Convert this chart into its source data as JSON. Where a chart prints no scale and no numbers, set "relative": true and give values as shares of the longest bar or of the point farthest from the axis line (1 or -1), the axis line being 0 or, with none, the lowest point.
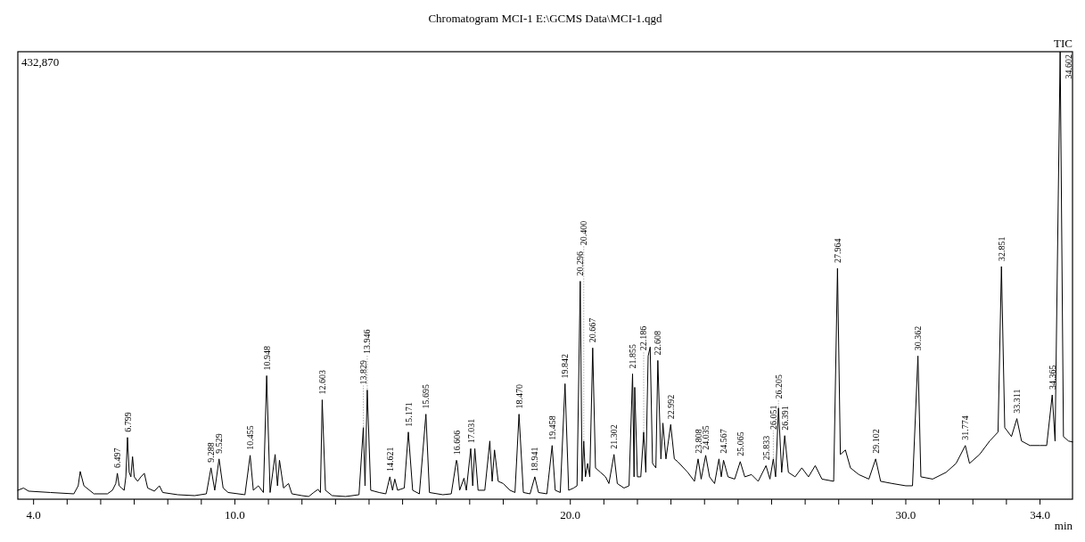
{
  "chart_data": {
    "type": "line",
    "title": "Chromatogram MCI-1 E:\\GCMS Data\\MCI-1.qgd",
    "xlabel": "min",
    "relative": true,
    "grid": false,
    "legend": false,
    "marker": "none",
    "line_style": "solid",
    "xlim": [
      3.53,
      34.97
    ],
    "xticks": [
      {
        "value": 4,
        "label": "4.0"
      },
      {
        "value": 5,
        "label": null
      },
      {
        "value": 6,
        "label": null
      },
      {
        "value": 7,
        "label": null
      },
      {
        "value": 8,
        "label": null
      },
      {
        "value": 9,
        "label": null
      },
      {
        "value": 10,
        "label": "10.0"
      },
      {
        "value": 11,
        "label": null
      },
      {
        "value": 12,
        "label": null
      },
      {
        "value": 13,
        "label": null
      },
      {
        "value": 14,
        "label": null
      },
      {
        "value": 15,
        "label": null
      },
      {
        "value": 16,
        "label": null
      },
      {
        "value": 17,
        "label": null
      },
      {
        "value": 18,
        "label": null
      },
      {
        "value": 19,
        "label": null
      },
      {
        "value": 20,
        "label": "20.0"
      },
      {
        "value": 21,
        "label": null
      },
      {
        "value": 22,
        "label": null
      },
      {
        "value": 23,
        "label": null
      },
      {
        "value": 24,
        "label": null
      },
      {
        "value": 25,
        "label": null
      },
      {
        "value": 26,
        "label": null
      },
      {
        "value": 27,
        "label": null
      },
      {
        "value": 28,
        "label": null
      },
      {
        "value": 29,
        "label": null
      },
      {
        "value": 30,
        "label": "30.0"
      },
      {
        "value": 31,
        "label": null
      },
      {
        "value": 32,
        "label": null
      },
      {
        "value": 33,
        "label": null
      },
      {
        "value": 34,
        "label": "34.0"
      }
    ],
    "series": [
      {
        "name": "TIC",
        "color": "#000000",
        "x": [
          3.53,
          3.7,
          3.85,
          4.5,
          5.2,
          5.33,
          5.39,
          5.5,
          5.8,
          6.2,
          6.35,
          6.45,
          6.497,
          6.55,
          6.62,
          6.7,
          6.75,
          6.799,
          6.85,
          6.9,
          6.95,
          7.0,
          7.1,
          7.2,
          7.3,
          7.4,
          7.6,
          7.75,
          7.85,
          8.3,
          8.8,
          9.15,
          9.288,
          9.4,
          9.529,
          9.65,
          9.8,
          10.3,
          10.455,
          10.55,
          10.7,
          10.85,
          10.948,
          11.05,
          11.2,
          11.27,
          11.33,
          11.45,
          11.6,
          11.7,
          12.0,
          12.2,
          12.35,
          12.48,
          12.55,
          12.603,
          12.7,
          12.9,
          13.3,
          13.7,
          13.829,
          13.88,
          13.946,
          14.05,
          14.3,
          14.5,
          14.621,
          14.7,
          14.767,
          14.85,
          15.05,
          15.171,
          15.3,
          15.5,
          15.695,
          15.8,
          16.2,
          16.45,
          16.606,
          16.632,
          16.7,
          16.83,
          16.9,
          17.031,
          17.09,
          17.153,
          17.25,
          17.45,
          17.6,
          17.67,
          17.74,
          17.85,
          18.0,
          18.2,
          18.35,
          18.47,
          18.6,
          18.8,
          18.941,
          19.05,
          19.3,
          19.458,
          19.55,
          19.7,
          19.842,
          19.95,
          20.1,
          20.2,
          20.296,
          20.35,
          20.4,
          20.45,
          20.517,
          20.58,
          20.667,
          20.75,
          20.9,
          21.05,
          21.15,
          21.302,
          21.4,
          21.6,
          21.75,
          21.855,
          21.9,
          21.92,
          22.0,
          22.1,
          22.186,
          22.25,
          22.32,
          22.38,
          22.45,
          22.55,
          22.608,
          22.7,
          22.76,
          22.85,
          22.992,
          23.1,
          23.2,
          23.5,
          23.7,
          23.808,
          23.9,
          24.035,
          24.15,
          24.3,
          24.43,
          24.5,
          24.567,
          24.7,
          24.9,
          25.065,
          25.2,
          25.4,
          25.6,
          25.833,
          25.95,
          26.051,
          26.12,
          26.205,
          26.3,
          26.391,
          26.5,
          26.7,
          26.9,
          27.1,
          27.3,
          27.5,
          27.85,
          27.964,
          28.05,
          28.2,
          28.35,
          28.6,
          28.9,
          29.102,
          29.25,
          29.6,
          30.0,
          30.2,
          30.362,
          30.45,
          30.8,
          31.2,
          31.5,
          31.774,
          31.9,
          32.2,
          32.5,
          32.75,
          32.851,
          32.95,
          33.15,
          33.311,
          33.45,
          33.7,
          34.0,
          34.2,
          34.365,
          34.45,
          34.602,
          34.7,
          34.85,
          34.97
        ],
        "values": [
          0.02,
          0.025,
          0.018,
          0.015,
          0.012,
          0.03,
          0.062,
          0.03,
          0.012,
          0.012,
          0.02,
          0.035,
          0.058,
          0.03,
          0.025,
          0.02,
          0.05,
          0.138,
          0.06,
          0.05,
          0.095,
          0.05,
          0.04,
          0.05,
          0.058,
          0.025,
          0.018,
          0.03,
          0.015,
          0.01,
          0.008,
          0.012,
          0.07,
          0.02,
          0.09,
          0.025,
          0.015,
          0.01,
          0.098,
          0.02,
          0.03,
          0.015,
          0.276,
          0.015,
          0.1,
          0.03,
          0.087,
          0.025,
          0.035,
          0.012,
          0.008,
          0.006,
          0.015,
          0.022,
          0.015,
          0.222,
          0.02,
          0.008,
          0.006,
          0.01,
          0.16,
          0.03,
          0.244,
          0.02,
          0.015,
          0.012,
          0.05,
          0.02,
          0.045,
          0.02,
          0.025,
          0.15,
          0.02,
          0.012,
          0.19,
          0.015,
          0.01,
          0.012,
          0.087,
          0.08,
          0.02,
          0.047,
          0.02,
          0.113,
          0.03,
          0.113,
          0.02,
          0.02,
          0.13,
          0.04,
          0.11,
          0.04,
          0.035,
          0.02,
          0.015,
          0.19,
          0.015,
          0.012,
          0.05,
          0.015,
          0.012,
          0.12,
          0.02,
          0.015,
          0.258,
          0.02,
          0.025,
          0.03,
          0.487,
          0.04,
          0.13,
          0.05,
          0.08,
          0.05,
          0.338,
          0.07,
          0.06,
          0.05,
          0.035,
          0.1,
          0.035,
          0.025,
          0.03,
          0.28,
          0.05,
          0.25,
          0.05,
          0.05,
          0.15,
          0.06,
          0.32,
          0.34,
          0.08,
          0.07,
          0.31,
          0.09,
          0.17,
          0.09,
          0.167,
          0.09,
          0.084,
          0.06,
          0.04,
          0.09,
          0.045,
          0.098,
          0.05,
          0.035,
          0.09,
          0.05,
          0.087,
          0.05,
          0.045,
          0.084,
          0.05,
          0.055,
          0.04,
          0.075,
          0.045,
          0.09,
          0.05,
          0.204,
          0.06,
          0.142,
          0.06,
          0.05,
          0.07,
          0.05,
          0.075,
          0.045,
          0.04,
          0.516,
          0.1,
          0.11,
          0.07,
          0.055,
          0.045,
          0.09,
          0.04,
          0.035,
          0.03,
          0.03,
          0.32,
          0.05,
          0.045,
          0.06,
          0.08,
          0.12,
          0.08,
          0.1,
          0.13,
          0.15,
          0.52,
          0.16,
          0.14,
          0.18,
          0.13,
          0.12,
          0.12,
          0.12,
          0.233,
          0.13,
          1,
          0.14,
          0.13,
          0.128
        ]
      }
    ],
    "annotations": [
      "432,870",
      {
        "text": "6.497",
        "x": 6.497,
        "y": 0.058
      },
      {
        "text": "6.799",
        "x": 6.799,
        "y": 0.138
      },
      {
        "text": "9.288",
        "x": 9.288,
        "y": 0.07
      },
      {
        "text": "9.529",
        "x": 9.529,
        "y": 0.09
      },
      {
        "text": "10.455",
        "x": 10.455,
        "y": 0.098
      },
      {
        "text": "10.948",
        "x": 10.948,
        "y": 0.276
      },
      {
        "text": "12.603",
        "x": 12.603,
        "y": 0.222
      },
      {
        "text": "13.829",
        "x": 13.829,
        "y": 0.16
      },
      {
        "text": "13.946",
        "x": 13.946,
        "y": 0.244
      },
      {
        "text": "14.621",
        "x": 14.621,
        "y": 0.05
      },
      {
        "text": "15.171",
        "x": 15.171,
        "y": 0.15
      },
      {
        "text": "15.695",
        "x": 15.695,
        "y": 0.19
      },
      {
        "text": "16.606",
        "x": 16.606,
        "y": 0.087
      },
      {
        "text": "17.031",
        "x": 17.031,
        "y": 0.113
      },
      {
        "text": "18.470",
        "x": 18.47,
        "y": 0.19
      },
      {
        "text": "18.941",
        "x": 18.941,
        "y": 0.05
      },
      {
        "text": "19.458",
        "x": 19.458,
        "y": 0.12
      },
      {
        "text": "19.842",
        "x": 19.842,
        "y": 0.258
      },
      {
        "text": "20.296",
        "x": 20.296,
        "y": 0.487
      },
      {
        "text": "20.400",
        "x": 20.4,
        "y": 0.13
      },
      {
        "text": "20.667",
        "x": 20.667,
        "y": 0.338
      },
      {
        "text": "21.302",
        "x": 21.302,
        "y": 0.1
      },
      {
        "text": "21.855",
        "x": 21.855,
        "y": 0.28
      },
      {
        "text": "22.186",
        "x": 22.186,
        "y": 0.15
      },
      {
        "text": "22.608",
        "x": 22.608,
        "y": 0.31
      },
      {
        "text": "22.992",
        "x": 22.992,
        "y": 0.167
      },
      {
        "text": "23.808",
        "x": 23.808,
        "y": 0.09
      },
      {
        "text": "24.035",
        "x": 24.035,
        "y": 0.098
      },
      {
        "text": "24.567",
        "x": 24.567,
        "y": 0.087
      },
      {
        "text": "25.065",
        "x": 25.065,
        "y": 0.084
      },
      {
        "text": "25.833",
        "x": 25.833,
        "y": 0.075
      },
      {
        "text": "26.051",
        "x": 26.051,
        "y": 0.09
      },
      {
        "text": "26.205",
        "x": 26.205,
        "y": 0.204
      },
      {
        "text": "26.391",
        "x": 26.391,
        "y": 0.142
      },
      {
        "text": "27.964",
        "x": 27.964,
        "y": 0.516
      },
      {
        "text": "29.102",
        "x": 29.102,
        "y": 0.09
      },
      {
        "text": "30.362",
        "x": 30.362,
        "y": 0.32
      },
      {
        "text": "31.774",
        "x": 31.774,
        "y": 0.12
      },
      {
        "text": "32.851",
        "x": 32.851,
        "y": 0.52
      },
      {
        "text": "33.311",
        "x": 33.311,
        "y": 0.18
      },
      {
        "text": "34.365",
        "x": 34.365,
        "y": 0.233
      },
      {
        "text": "34.602",
        "x": 34.602,
        "y": 1
      }
    ]
  }
}
